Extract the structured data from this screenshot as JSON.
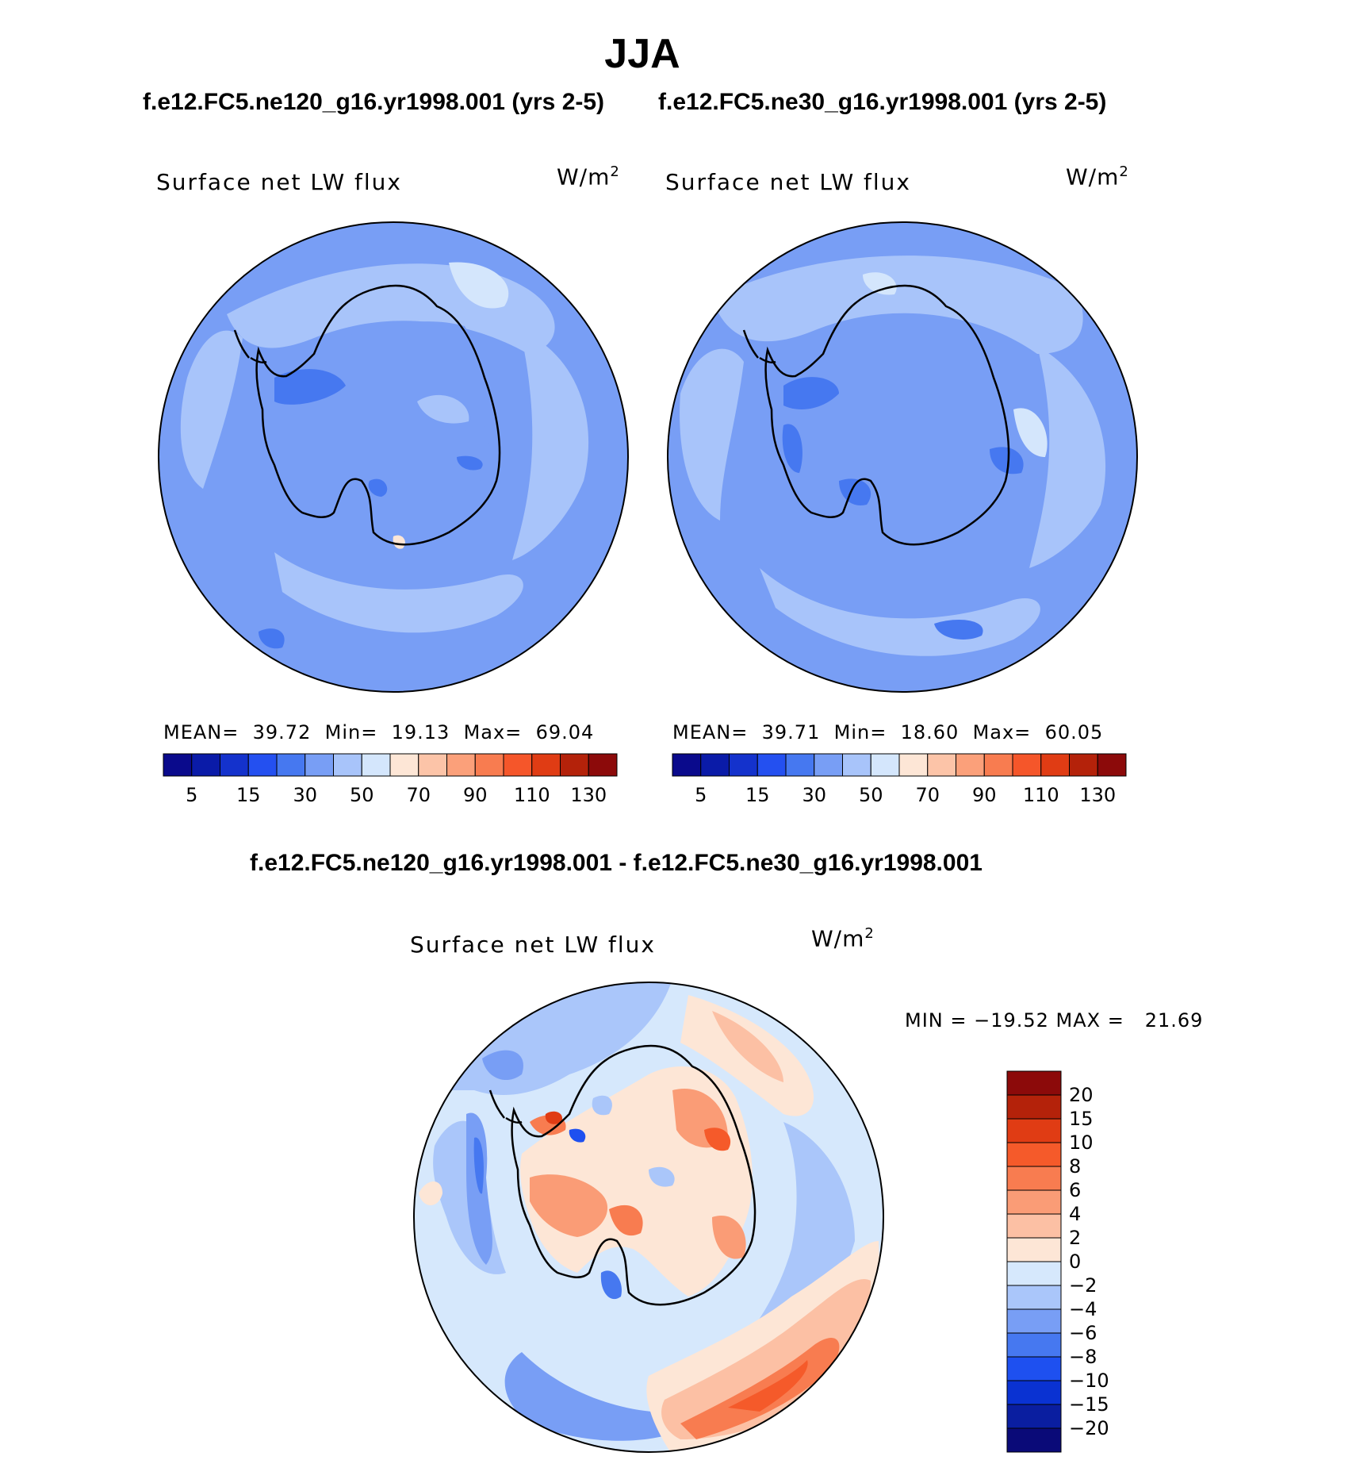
{
  "title": "JJA",
  "subtitle_left": "f.e12.FC5.ne120_g16.yr1998.001 (yrs 2-5)",
  "subtitle_right": "f.e12.FC5.ne30_g16.yr1998.001 (yrs 2-5)",
  "diff_title": "f.e12.FC5.ne120_g16.yr1998.001 - f.e12.FC5.ne30_g16.yr1998.001",
  "panels": [
    {
      "variable": "Surface net LW flux",
      "units": "W/m",
      "units_exp": "2",
      "mean_label": "MEAN=",
      "mean": "39.72",
      "min_label": "Min=",
      "min": "19.13",
      "max_label": "Max=",
      "max": "69.04"
    },
    {
      "variable": "Surface net LW flux",
      "units": "W/m",
      "units_exp": "2",
      "mean_label": "MEAN=",
      "mean": "39.71",
      "min_label": "Min=",
      "min": "18.60",
      "max_label": "Max=",
      "max": "60.05"
    }
  ],
  "diff_panel": {
    "variable": "Surface net LW flux",
    "units": "W/m",
    "units_exp": "2",
    "minmax": "MIN = −19.52 MAX =   21.69"
  },
  "colorbar_top": {
    "colors": [
      "#0a0a8c",
      "#0a1ba8",
      "#1432cc",
      "#2450f0",
      "#4678f0",
      "#789ef5",
      "#a8c4fa",
      "#d4e6fc",
      "#fde6d6",
      "#fcc4a8",
      "#fba07a",
      "#f87c50",
      "#f5562a",
      "#e03c14",
      "#b4220a",
      "#8c0a0a"
    ],
    "labels": [
      "5",
      "15",
      "30",
      "50",
      "70",
      "90",
      "110",
      "130"
    ]
  },
  "colorbar_diff": {
    "colors": [
      "#0a0a78",
      "#0a1ea0",
      "#0a32d2",
      "#1e50f0",
      "#4678f0",
      "#789ef5",
      "#aac6fa",
      "#d6e8fc",
      "#fde6d6",
      "#fcc0a4",
      "#fa9c76",
      "#f87c50",
      "#f55a2a",
      "#e03c14",
      "#b4220a",
      "#8c0a0a"
    ],
    "labels": [
      "20",
      "15",
      "10",
      "8",
      "6",
      "4",
      "2",
      "0",
      "−2",
      "−4",
      "−6",
      "−8",
      "−10",
      "−15",
      "−20"
    ]
  }
}
